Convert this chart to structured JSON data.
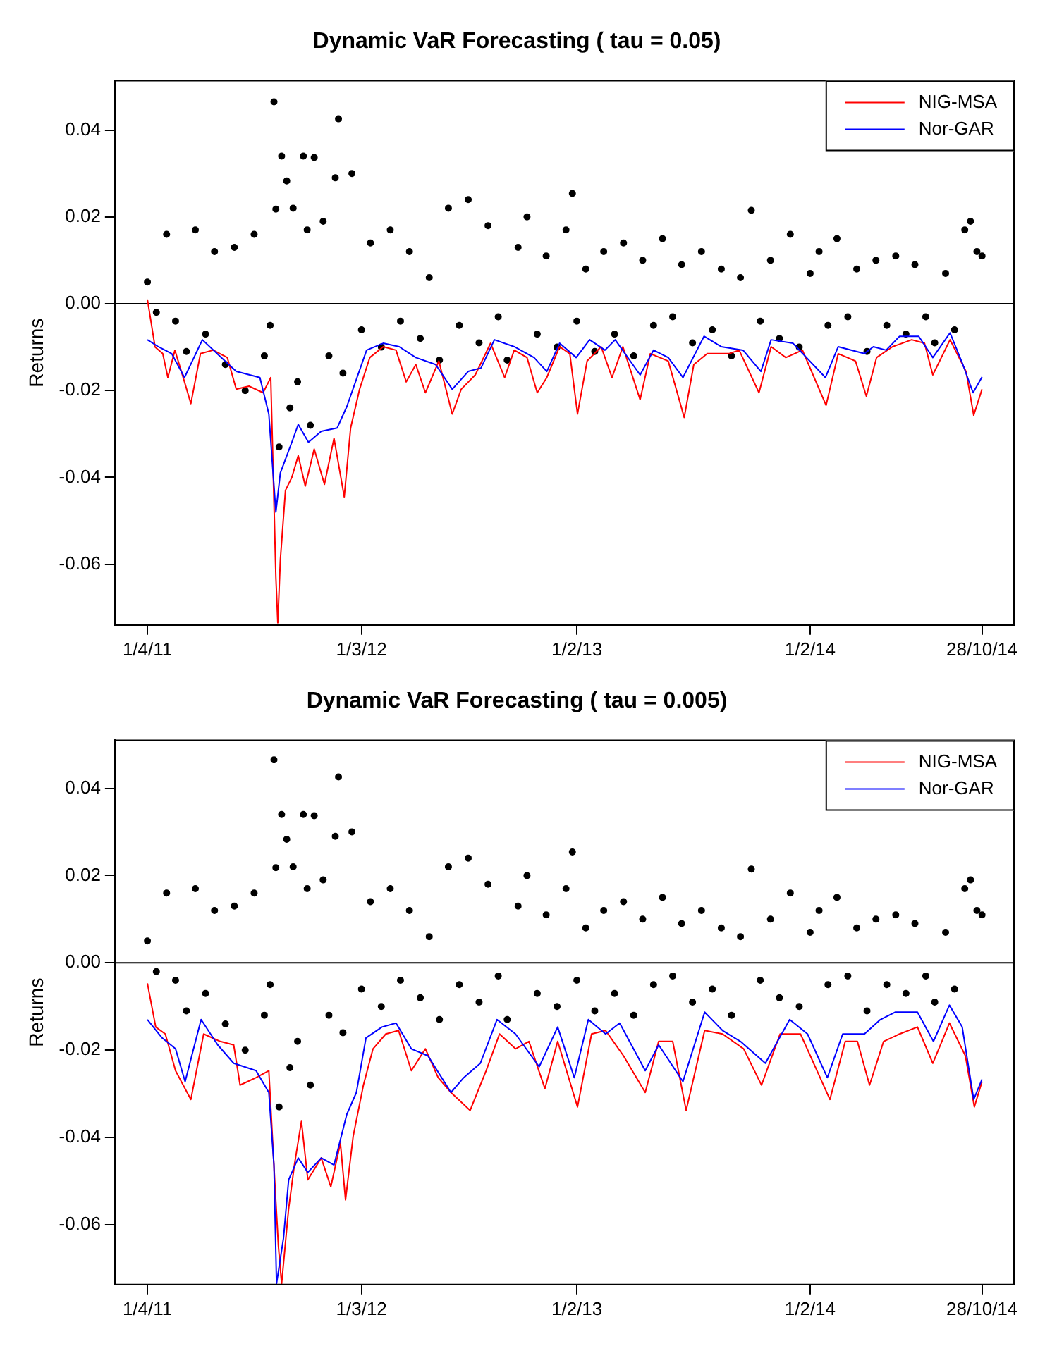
{
  "chart_data": [
    {
      "type": "line",
      "title": "Dynamic VaR Forecasting ( tau = 0.05)",
      "ylabel": "Returns",
      "legend": "top right",
      "xlim": [
        "2011-02-09",
        "2014-12-17"
      ],
      "xticks": [
        {
          "value": "2011-04-01",
          "label": "1/4/11"
        },
        {
          "value": "2012-03-01",
          "label": "1/3/12"
        },
        {
          "value": "2013-02-01",
          "label": "1/2/13"
        },
        {
          "value": "2014-02-01",
          "label": "1/2/14"
        },
        {
          "value": "2014-10-28",
          "label": "28/10/14"
        }
      ],
      "ylim": [
        -0.074,
        0.0514
      ],
      "yticks": [
        -0.06,
        -0.04,
        -0.02,
        {
          "value": 0,
          "label": "0.00"
        },
        0.02,
        0.04
      ],
      "ref_lines": [
        {
          "axis": "y",
          "value": 0,
          "color": "#000000"
        }
      ],
      "series": [
        {
          "type": "scatter",
          "marker": "circle",
          "color": "#000000",
          "x": [
            "2011-04-01",
            "2011-04-15",
            "2011-05-01",
            "2011-05-15",
            "2011-06-01",
            "2011-06-15",
            "2011-07-01",
            "2011-07-15",
            "2011-08-01",
            "2011-08-15",
            "2011-09-01",
            "2011-09-15",
            "2011-10-01",
            "2011-10-10",
            "2011-10-16",
            "2011-10-19",
            "2011-10-24",
            "2011-10-28",
            "2011-11-05",
            "2011-11-10",
            "2011-11-15",
            "2011-11-22",
            "2011-12-01",
            "2011-12-07",
            "2011-12-12",
            "2011-12-18",
            "2012-01-01",
            "2012-01-10",
            "2012-01-20",
            "2012-01-25",
            "2012-02-01",
            "2012-02-15",
            "2012-03-01",
            "2012-03-15",
            "2012-04-01",
            "2012-04-15",
            "2012-05-01",
            "2012-05-15",
            "2012-06-01",
            "2012-06-15",
            "2012-07-01",
            "2012-07-15",
            "2012-08-01",
            "2012-08-15",
            "2012-09-01",
            "2012-09-15",
            "2012-10-01",
            "2012-10-15",
            "2012-11-01",
            "2012-11-15",
            "2012-12-01",
            "2012-12-15",
            "2013-01-01",
            "2013-01-15",
            "2013-01-25",
            "2013-02-01",
            "2013-02-15",
            "2013-03-01",
            "2013-03-15",
            "2013-04-01",
            "2013-04-15",
            "2013-05-01",
            "2013-05-15",
            "2013-06-01",
            "2013-06-15",
            "2013-07-01",
            "2013-07-15",
            "2013-08-01",
            "2013-08-15",
            "2013-09-01",
            "2013-09-15",
            "2013-10-01",
            "2013-10-15",
            "2013-11-01",
            "2013-11-15",
            "2013-12-01",
            "2013-12-15",
            "2014-01-01",
            "2014-01-15",
            "2014-02-01",
            "2014-02-15",
            "2014-03-01",
            "2014-03-15",
            "2014-04-01",
            "2014-04-15",
            "2014-05-01",
            "2014-05-15",
            "2014-06-01",
            "2014-06-15",
            "2014-07-01",
            "2014-07-15",
            "2014-08-01",
            "2014-08-15",
            "2014-09-01",
            "2014-09-15",
            "2014-10-01",
            "2014-10-10",
            "2014-10-20",
            "2014-10-28"
          ],
          "values": [
            0.005,
            -0.002,
            0.016,
            -0.004,
            -0.011,
            0.017,
            -0.007,
            0.012,
            -0.014,
            0.013,
            -0.02,
            0.016,
            -0.012,
            -0.005,
            0.0465,
            0.0218,
            -0.033,
            0.034,
            0.0283,
            -0.024,
            0.022,
            -0.018,
            0.034,
            0.017,
            -0.028,
            0.0337,
            0.019,
            -0.012,
            0.029,
            0.0426,
            -0.016,
            0.03,
            -0.006,
            0.014,
            -0.01,
            0.017,
            -0.004,
            0.012,
            -0.008,
            0.006,
            -0.013,
            0.022,
            -0.005,
            0.024,
            -0.009,
            0.018,
            -0.003,
            -0.013,
            0.013,
            0.02,
            -0.007,
            0.011,
            -0.01,
            0.017,
            0.0254,
            -0.004,
            0.008,
            -0.011,
            0.012,
            -0.007,
            0.014,
            -0.012,
            0.01,
            -0.005,
            0.015,
            -0.003,
            0.009,
            -0.009,
            0.012,
            -0.006,
            0.008,
            -0.012,
            0.006,
            0.0215,
            -0.004,
            0.01,
            -0.008,
            0.016,
            -0.01,
            0.007,
            0.012,
            -0.005,
            0.015,
            -0.003,
            0.008,
            -0.011,
            0.01,
            -0.005,
            0.011,
            -0.007,
            0.009,
            -0.003,
            -0.009,
            0.007,
            -0.006,
            0.017,
            0.019,
            0.012,
            0.011
          ]
        },
        {
          "type": "line",
          "name": "NIG-MSA",
          "color": "#ff0000",
          "x": [
            "2011-04-01",
            "2011-04-13",
            "2011-04-25",
            "2011-05-03",
            "2011-05-14",
            "2011-05-29",
            "2011-06-08",
            "2011-06-23",
            "2011-07-13",
            "2011-08-04",
            "2011-08-18",
            "2011-09-07",
            "2011-09-29",
            "2011-10-11",
            "2011-10-19",
            "2011-10-22",
            "2011-10-26",
            "2011-11-03",
            "2011-11-13",
            "2011-11-23",
            "2011-12-04",
            "2011-12-18",
            "2012-01-03",
            "2012-01-18",
            "2012-02-03",
            "2012-02-13",
            "2012-02-27",
            "2012-03-14",
            "2012-04-04",
            "2012-04-24",
            "2012-05-10",
            "2012-05-25",
            "2012-06-09",
            "2012-06-30",
            "2012-07-21",
            "2012-08-04",
            "2012-08-26",
            "2012-09-19",
            "2012-10-11",
            "2012-10-26",
            "2012-11-15",
            "2012-12-01",
            "2012-12-16",
            "2013-01-05",
            "2013-01-21",
            "2013-02-02",
            "2013-02-17",
            "2013-03-11",
            "2013-03-28",
            "2013-04-14",
            "2013-05-11",
            "2013-05-27",
            "2013-06-24",
            "2013-07-19",
            "2013-08-03",
            "2013-08-24",
            "2013-09-27",
            "2013-10-13",
            "2013-11-13",
            "2013-12-02",
            "2013-12-25",
            "2014-01-20",
            "2014-02-26",
            "2014-03-17",
            "2014-04-13",
            "2014-04-30",
            "2014-05-16",
            "2014-06-10",
            "2014-07-10",
            "2014-07-30",
            "2014-08-12",
            "2014-09-08",
            "2014-10-03",
            "2014-10-15",
            "2014-10-28"
          ],
          "values": [
            0.001,
            -0.01,
            -0.0115,
            -0.017,
            -0.0107,
            -0.018,
            -0.023,
            -0.0115,
            -0.0107,
            -0.0124,
            -0.0197,
            -0.019,
            -0.0205,
            -0.017,
            -0.063,
            -0.0735,
            -0.059,
            -0.043,
            -0.04,
            -0.035,
            -0.042,
            -0.0335,
            -0.0416,
            -0.031,
            -0.0445,
            -0.0286,
            -0.0197,
            -0.0124,
            -0.0099,
            -0.0107,
            -0.018,
            -0.014,
            -0.0205,
            -0.0132,
            -0.0254,
            -0.0197,
            -0.0164,
            -0.0091,
            -0.017,
            -0.0107,
            -0.0124,
            -0.0205,
            -0.017,
            -0.0099,
            -0.0115,
            -0.0254,
            -0.0132,
            -0.0099,
            -0.017,
            -0.0099,
            -0.0221,
            -0.0115,
            -0.0132,
            -0.0262,
            -0.014,
            -0.0115,
            -0.0115,
            -0.0107,
            -0.0205,
            -0.0099,
            -0.0124,
            -0.0107,
            -0.0234,
            -0.0115,
            -0.0132,
            -0.0213,
            -0.0124,
            -0.0099,
            -0.0083,
            -0.0091,
            -0.0164,
            -0.0083,
            -0.0156,
            -0.0257,
            -0.0197
          ]
        },
        {
          "type": "line",
          "name": "Nor-GAR",
          "color": "#0000ff",
          "x": [
            "2011-04-01",
            "2011-04-18",
            "2011-05-09",
            "2011-05-29",
            "2011-06-26",
            "2011-07-19",
            "2011-08-18",
            "2011-09-24",
            "2011-10-08",
            "2011-10-19",
            "2011-10-26",
            "2011-11-13",
            "2011-11-23",
            "2011-12-09",
            "2011-12-29",
            "2012-01-23",
            "2012-02-07",
            "2012-03-09",
            "2012-04-04",
            "2012-04-29",
            "2012-05-25",
            "2012-06-25",
            "2012-07-21",
            "2012-08-15",
            "2012-09-04",
            "2012-09-25",
            "2012-10-26",
            "2012-11-26",
            "2012-12-16",
            "2013-01-05",
            "2013-01-31",
            "2013-02-21",
            "2013-03-17",
            "2013-04-02",
            "2013-05-11",
            "2013-06-01",
            "2013-06-24",
            "2013-07-17",
            "2013-08-19",
            "2013-09-15",
            "2013-10-19",
            "2013-11-16",
            "2013-12-02",
            "2014-01-05",
            "2014-02-25",
            "2014-03-17",
            "2014-04-27",
            "2014-05-11",
            "2014-05-31",
            "2014-06-21",
            "2014-07-21",
            "2014-08-12",
            "2014-09-08",
            "2014-09-28",
            "2014-10-14",
            "2014-10-28"
          ],
          "values": [
            -0.0083,
            -0.0099,
            -0.0115,
            -0.017,
            -0.0083,
            -0.0115,
            -0.0156,
            -0.017,
            -0.0254,
            -0.048,
            -0.039,
            -0.0319,
            -0.0278,
            -0.0319,
            -0.0294,
            -0.0286,
            -0.0237,
            -0.0107,
            -0.0091,
            -0.0099,
            -0.0124,
            -0.014,
            -0.0197,
            -0.0156,
            -0.0148,
            -0.0083,
            -0.0099,
            -0.0124,
            -0.0156,
            -0.0091,
            -0.0124,
            -0.0083,
            -0.0107,
            -0.0083,
            -0.0164,
            -0.0107,
            -0.0124,
            -0.017,
            -0.0075,
            -0.0099,
            -0.0107,
            -0.0156,
            -0.0083,
            -0.0091,
            -0.017,
            -0.0099,
            -0.0115,
            -0.0099,
            -0.0107,
            -0.0075,
            -0.0075,
            -0.0124,
            -0.0067,
            -0.014,
            -0.0205,
            -0.0169
          ]
        }
      ]
    },
    {
      "type": "line",
      "title": "Dynamic VaR Forecasting ( tau = 0.005)",
      "ylabel": "Returns",
      "legend": "top right",
      "xlim": [
        "2011-02-09",
        "2014-12-17"
      ],
      "xticks": [
        {
          "value": "2011-04-01",
          "label": "1/4/11"
        },
        {
          "value": "2012-03-01",
          "label": "1/3/12"
        },
        {
          "value": "2013-02-01",
          "label": "1/2/13"
        },
        {
          "value": "2014-02-01",
          "label": "1/2/14"
        },
        {
          "value": "2014-10-28",
          "label": "28/10/14"
        }
      ],
      "ylim": [
        -0.0737,
        0.051
      ],
      "yticks": [
        -0.06,
        -0.04,
        -0.02,
        {
          "value": 0,
          "label": "0.00"
        },
        0.02,
        0.04
      ],
      "ref_lines": [
        {
          "axis": "y",
          "value": 0,
          "color": "#000000"
        }
      ],
      "series": [
        {
          "type": "scatter",
          "marker": "circle",
          "color": "#000000",
          "x": [
            "2011-04-01",
            "2011-04-15",
            "2011-05-01",
            "2011-05-15",
            "2011-06-01",
            "2011-06-15",
            "2011-07-01",
            "2011-07-15",
            "2011-08-01",
            "2011-08-15",
            "2011-09-01",
            "2011-09-15",
            "2011-10-01",
            "2011-10-10",
            "2011-10-16",
            "2011-10-19",
            "2011-10-24",
            "2011-10-28",
            "2011-11-05",
            "2011-11-10",
            "2011-11-15",
            "2011-11-22",
            "2011-12-01",
            "2011-12-07",
            "2011-12-12",
            "2011-12-18",
            "2012-01-01",
            "2012-01-10",
            "2012-01-20",
            "2012-01-25",
            "2012-02-01",
            "2012-02-15",
            "2012-03-01",
            "2012-03-15",
            "2012-04-01",
            "2012-04-15",
            "2012-05-01",
            "2012-05-15",
            "2012-06-01",
            "2012-06-15",
            "2012-07-01",
            "2012-07-15",
            "2012-08-01",
            "2012-08-15",
            "2012-09-01",
            "2012-09-15",
            "2012-10-01",
            "2012-10-15",
            "2012-11-01",
            "2012-11-15",
            "2012-12-01",
            "2012-12-15",
            "2013-01-01",
            "2013-01-15",
            "2013-01-25",
            "2013-02-01",
            "2013-02-15",
            "2013-03-01",
            "2013-03-15",
            "2013-04-01",
            "2013-04-15",
            "2013-05-01",
            "2013-05-15",
            "2013-06-01",
            "2013-06-15",
            "2013-07-01",
            "2013-07-15",
            "2013-08-01",
            "2013-08-15",
            "2013-09-01",
            "2013-09-15",
            "2013-10-01",
            "2013-10-15",
            "2013-11-01",
            "2013-11-15",
            "2013-12-01",
            "2013-12-15",
            "2014-01-01",
            "2014-01-15",
            "2014-02-01",
            "2014-02-15",
            "2014-03-01",
            "2014-03-15",
            "2014-04-01",
            "2014-04-15",
            "2014-05-01",
            "2014-05-15",
            "2014-06-01",
            "2014-06-15",
            "2014-07-01",
            "2014-07-15",
            "2014-08-01",
            "2014-08-15",
            "2014-09-01",
            "2014-09-15",
            "2014-10-01",
            "2014-10-10",
            "2014-10-20",
            "2014-10-28"
          ],
          "values": [
            0.005,
            -0.002,
            0.016,
            -0.004,
            -0.011,
            0.017,
            -0.007,
            0.012,
            -0.014,
            0.013,
            -0.02,
            0.016,
            -0.012,
            -0.005,
            0.0465,
            0.0218,
            -0.033,
            0.034,
            0.0283,
            -0.024,
            0.022,
            -0.018,
            0.034,
            0.017,
            -0.028,
            0.0337,
            0.019,
            -0.012,
            0.029,
            0.0426,
            -0.016,
            0.03,
            -0.006,
            0.014,
            -0.01,
            0.017,
            -0.004,
            0.012,
            -0.008,
            0.006,
            -0.013,
            0.022,
            -0.005,
            0.024,
            -0.009,
            0.018,
            -0.003,
            -0.013,
            0.013,
            0.02,
            -0.007,
            0.011,
            -0.01,
            0.017,
            0.0254,
            -0.004,
            0.008,
            -0.011,
            0.012,
            -0.007,
            0.014,
            -0.012,
            0.01,
            -0.005,
            0.015,
            -0.003,
            0.009,
            -0.009,
            0.012,
            -0.006,
            0.008,
            -0.012,
            0.006,
            0.0215,
            -0.004,
            0.01,
            -0.008,
            0.016,
            -0.01,
            0.007,
            0.012,
            -0.005,
            0.015,
            -0.003,
            0.008,
            -0.011,
            0.01,
            -0.005,
            0.011,
            -0.007,
            0.009,
            -0.003,
            -0.009,
            0.007,
            -0.006,
            0.017,
            0.019,
            0.012,
            0.011
          ]
        },
        {
          "type": "line",
          "name": "NIG-MSA",
          "color": "#ff0000",
          "x": [
            "2011-04-01",
            "2011-04-14",
            "2011-04-29",
            "2011-05-15",
            "2011-06-08",
            "2011-06-28",
            "2011-07-24",
            "2011-08-14",
            "2011-08-24",
            "2011-09-18",
            "2011-10-08",
            "2011-10-19",
            "2011-10-23",
            "2011-10-28",
            "2011-11-08",
            "2011-11-17",
            "2011-11-28",
            "2011-12-08",
            "2011-12-29",
            "2012-01-13",
            "2012-01-28",
            "2012-02-05",
            "2012-02-17",
            "2012-03-04",
            "2012-03-19",
            "2012-04-08",
            "2012-04-28",
            "2012-05-18",
            "2012-06-09",
            "2012-06-29",
            "2012-07-19",
            "2012-08-18",
            "2012-09-12",
            "2012-10-03",
            "2012-10-28",
            "2012-11-18",
            "2012-12-13",
            "2013-01-02",
            "2013-02-02",
            "2013-02-24",
            "2013-03-18",
            "2013-04-15",
            "2013-05-19",
            "2013-06-09",
            "2013-07-01",
            "2013-07-22",
            "2013-08-20",
            "2013-09-17",
            "2013-10-20",
            "2013-11-17",
            "2013-12-16",
            "2014-01-17",
            "2014-03-04",
            "2014-03-28",
            "2014-04-16",
            "2014-05-05",
            "2014-05-27",
            "2014-06-21",
            "2014-07-19",
            "2014-08-12",
            "2014-09-07",
            "2014-10-02",
            "2014-10-16",
            "2014-10-28"
          ],
          "values": [
            -0.0047,
            -0.0147,
            -0.0163,
            -0.0247,
            -0.0313,
            -0.0163,
            -0.018,
            -0.0188,
            -0.028,
            -0.0263,
            -0.0247,
            -0.0547,
            -0.065,
            -0.0735,
            -0.0563,
            -0.0463,
            -0.0363,
            -0.0497,
            -0.0447,
            -0.0513,
            -0.0413,
            -0.0543,
            -0.0397,
            -0.028,
            -0.0197,
            -0.0163,
            -0.0155,
            -0.0247,
            -0.0197,
            -0.0263,
            -0.0297,
            -0.0338,
            -0.0247,
            -0.0163,
            -0.0197,
            -0.018,
            -0.0288,
            -0.018,
            -0.033,
            -0.0163,
            -0.0155,
            -0.0213,
            -0.0297,
            -0.018,
            -0.018,
            -0.0338,
            -0.0155,
            -0.0163,
            -0.0197,
            -0.028,
            -0.0163,
            -0.0163,
            -0.0313,
            -0.018,
            -0.018,
            -0.028,
            -0.018,
            -0.0163,
            -0.0147,
            -0.023,
            -0.0138,
            -0.0213,
            -0.033,
            -0.0272
          ]
        },
        {
          "type": "line",
          "name": "Nor-GAR",
          "color": "#0000ff",
          "x": [
            "2011-04-01",
            "2011-04-24",
            "2011-05-15",
            "2011-05-30",
            "2011-06-24",
            "2011-07-20",
            "2011-08-14",
            "2011-09-18",
            "2011-10-08",
            "2011-10-16",
            "2011-10-20",
            "2011-10-31",
            "2011-11-08",
            "2011-11-23",
            "2011-12-08",
            "2011-12-29",
            "2012-01-18",
            "2012-02-07",
            "2012-02-22",
            "2012-03-08",
            "2012-04-02",
            "2012-04-24",
            "2012-05-18",
            "2012-06-13",
            "2012-07-19",
            "2012-08-08",
            "2012-09-03",
            "2012-09-29",
            "2012-10-28",
            "2012-12-04",
            "2013-01-02",
            "2013-01-28",
            "2013-02-19",
            "2013-03-18",
            "2013-04-09",
            "2013-05-19",
            "2013-06-09",
            "2013-07-17",
            "2013-08-20",
            "2013-09-17",
            "2013-10-15",
            "2013-11-23",
            "2013-12-31",
            "2014-01-28",
            "2014-02-28",
            "2014-03-24",
            "2014-04-27",
            "2014-05-22",
            "2014-06-14",
            "2014-07-19",
            "2014-08-13",
            "2014-09-07",
            "2014-09-27",
            "2014-10-15",
            "2014-10-28"
          ],
          "values": [
            -0.013,
            -0.0172,
            -0.0197,
            -0.0272,
            -0.013,
            -0.0188,
            -0.023,
            -0.0247,
            -0.0297,
            -0.0463,
            -0.0735,
            -0.063,
            -0.0497,
            -0.0447,
            -0.048,
            -0.0447,
            -0.0463,
            -0.0347,
            -0.0297,
            -0.0172,
            -0.0147,
            -0.0138,
            -0.0197,
            -0.0213,
            -0.0297,
            -0.0263,
            -0.023,
            -0.013,
            -0.0163,
            -0.0238,
            -0.0147,
            -0.0263,
            -0.013,
            -0.0163,
            -0.0138,
            -0.0247,
            -0.0188,
            -0.0272,
            -0.0113,
            -0.0155,
            -0.018,
            -0.023,
            -0.013,
            -0.0163,
            -0.0263,
            -0.0163,
            -0.0163,
            -0.013,
            -0.0113,
            -0.0113,
            -0.018,
            -0.0097,
            -0.0147,
            -0.0313,
            -0.0267
          ]
        }
      ]
    }
  ]
}
